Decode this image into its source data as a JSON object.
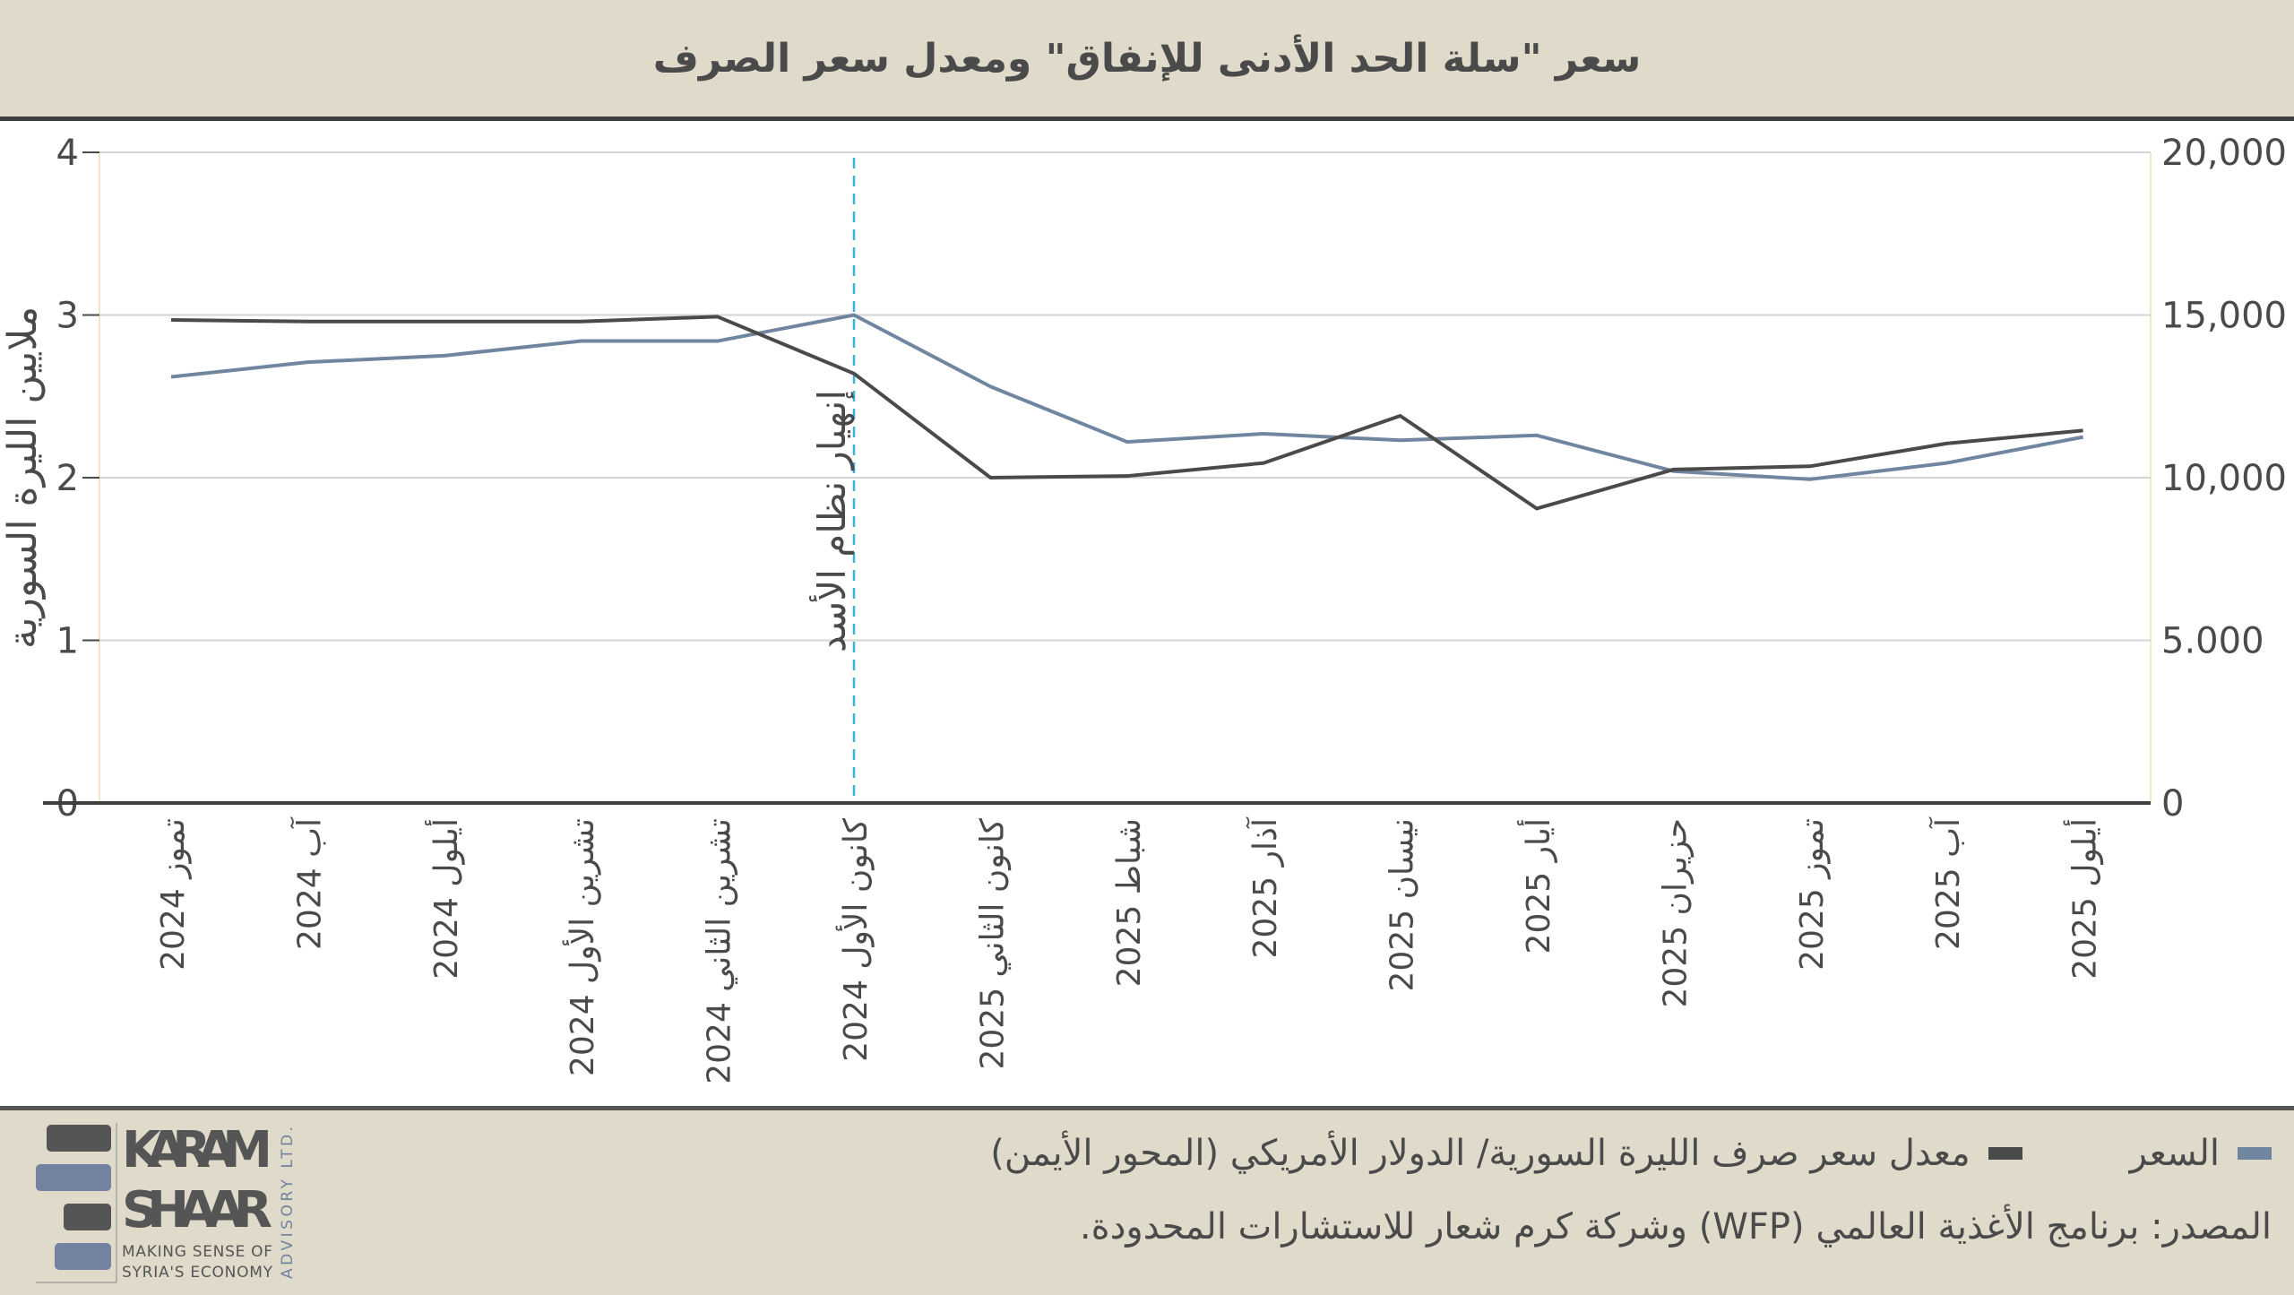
{
  "title": "سعر \"سلة الحد الأدنى للإنفاق\" ومعدل سعر الصرف",
  "chart_data": {
    "type": "line",
    "title": "سعر \"سلة الحد الأدنى للإنفاق\" ومعدل سعر الصرف",
    "ylabel": "ملايين الليرة السورية",
    "ylim": [
      0,
      4
    ],
    "yticks": [
      "0",
      "1",
      "2",
      "3",
      "4"
    ],
    "y2lim": [
      0,
      20000
    ],
    "y2ticks": [
      "0",
      "5.000",
      "10,000",
      "15,000",
      "20,000"
    ],
    "grid": true,
    "categories": [
      "تموز 2024",
      "آب 2024",
      "أيلول 2024",
      "تشرين الأول 2024",
      "تشرين الثاني 2024",
      "كانون الأول 2024",
      "كانون الثاني 2025",
      "شباط 2025",
      "آذار 2025",
      "نيسان 2025",
      "أيار 2025",
      "حزيران 2025",
      "تموز 2025",
      "آب 2025",
      "أيلول 2025"
    ],
    "series": [
      {
        "name": "السعر",
        "axis": "left",
        "color": "#7085a0",
        "values": [
          2.62,
          2.71,
          2.75,
          2.84,
          2.84,
          3.0,
          2.56,
          2.22,
          2.27,
          2.23,
          2.26,
          2.04,
          1.99,
          2.09,
          2.25
        ]
      },
      {
        "name": "معدل سعر صرف الليرة السورية/ الدولار الأمريكي (المحور الأيمن)",
        "axis": "right",
        "color": "#4a4a4a",
        "values": [
          14850,
          14800,
          14800,
          14800,
          14950,
          13200,
          10000,
          10050,
          10450,
          11900,
          9050,
          10250,
          10350,
          11050,
          11450
        ]
      }
    ],
    "annotation": {
      "label": "إنهيار نظام الأسد",
      "category_index": 5,
      "color": "#3bb0e0"
    },
    "legend_position": "bottom-right"
  },
  "source": "المصدر: برنامج الأغذية العالمي (WFP) وشركة كرم شعار للاستشارات المحدودة.",
  "logo": {
    "line1": "KARAM",
    "line2": "SHAAR",
    "tag1": "MAKING SENSE OF",
    "tag2": "SYRIA'S ECONOMY",
    "side": "ADVISORY LTD."
  }
}
